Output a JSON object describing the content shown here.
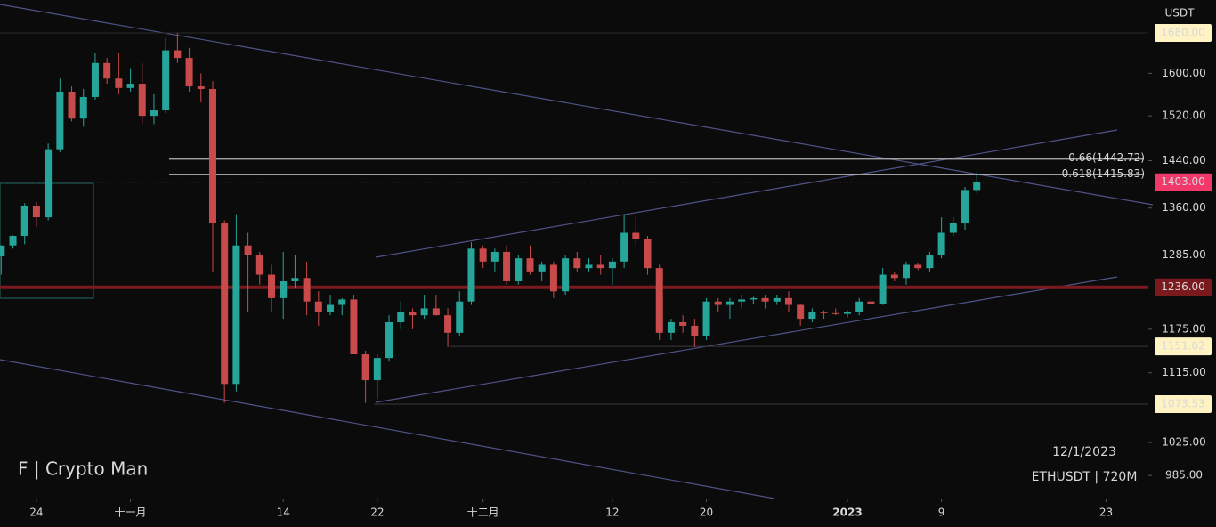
{
  "chart_data": {
    "type": "candlestick",
    "currency": "USDT",
    "watermark": "F | Crypto Man",
    "date_stamp": "12/1/2023",
    "symbol_stamp": "ETHUSDT | 720M",
    "log_scale": true,
    "grid": false,
    "up_color": "#26a69a",
    "down_color": "#c94a4a",
    "ylim": [
      958,
      1748
    ],
    "xlim": [
      -0.1,
      97.6
    ],
    "yticks": [
      {
        "value": 1600,
        "label": "1600.00"
      },
      {
        "value": 1520,
        "label": "1520.00"
      },
      {
        "value": 1440,
        "label": "1440.00"
      },
      {
        "value": 1360,
        "label": "1360.00"
      },
      {
        "value": 1285,
        "label": "1285.00"
      },
      {
        "value": 1175,
        "label": "1175.00"
      },
      {
        "value": 1115,
        "label": "1115.00"
      },
      {
        "value": 1025,
        "label": "1025.00"
      },
      {
        "value": 985,
        "label": "985.00"
      }
    ],
    "xticks": [
      {
        "value": 3,
        "label": "24"
      },
      {
        "value": 11,
        "label": "十一月"
      },
      {
        "value": 24,
        "label": "14"
      },
      {
        "value": 32,
        "label": "22"
      },
      {
        "value": 41,
        "label": "十二月"
      },
      {
        "value": 52,
        "label": "12"
      },
      {
        "value": 60,
        "label": "20"
      },
      {
        "value": 72,
        "label": "2023"
      },
      {
        "value": 80,
        "label": "9"
      },
      {
        "value": 94,
        "label": "23"
      }
    ],
    "price_labels": [
      {
        "value": 1680,
        "label": "1680.00",
        "color": "#fff3c4",
        "text_color": "#000000"
      },
      {
        "value": 1403,
        "label": "1403.00",
        "color": "#f0396a",
        "text_color": "#ffffff"
      },
      {
        "value": 1236,
        "label": "1236.00",
        "color": "#7a1a1e",
        "text_color": "#ffffff"
      },
      {
        "value": 1151.02,
        "label": "1151.02",
        "color": "#fff3c4",
        "text_color": "#000000"
      },
      {
        "value": 1073.53,
        "label": "1073.53",
        "color": "#fff3c4",
        "text_color": "#000000"
      }
    ],
    "levels": [
      {
        "value": 1442.72,
        "label": "0.66(1442.72)"
      },
      {
        "value": 1415.83,
        "label": "0.618(1415.83)"
      }
    ],
    "open": [
      1283,
      1300,
      1315,
      1364,
      1345,
      1460,
      1565,
      1515,
      1555,
      1620,
      1590,
      1572,
      1580,
      1520,
      1530,
      1645,
      1630,
      1575,
      1570,
      1335,
      1100,
      1300,
      1285,
      1255,
      1220,
      1245,
      1250,
      1215,
      1200,
      1210,
      1218,
      1140,
      1105,
      1135,
      1185,
      1200,
      1195,
      1205,
      1195,
      1170,
      1215,
      1295,
      1275,
      1290,
      1245,
      1280,
      1260,
      1270,
      1230,
      1280,
      1265,
      1270,
      1265,
      1275,
      1320,
      1310,
      1265,
      1170,
      1185,
      1180,
      1165,
      1215,
      1210,
      1215,
      1218,
      1220,
      1215,
      1220,
      1210,
      1190,
      1200,
      1198,
      1197,
      1200,
      1215,
      1212,
      1255,
      1250,
      1270,
      1265,
      1285,
      1320,
      1335,
      1390
    ],
    "high": [
      1300,
      1316,
      1368,
      1370,
      1470,
      1590,
      1575,
      1570,
      1640,
      1630,
      1640,
      1610,
      1620,
      1560,
      1670,
      1680,
      1650,
      1600,
      1585,
      1340,
      1350,
      1320,
      1290,
      1270,
      1290,
      1285,
      1275,
      1230,
      1225,
      1220,
      1225,
      1145,
      1140,
      1195,
      1215,
      1205,
      1225,
      1225,
      1205,
      1230,
      1305,
      1300,
      1295,
      1300,
      1285,
      1300,
      1275,
      1275,
      1285,
      1290,
      1280,
      1285,
      1280,
      1350,
      1345,
      1315,
      1270,
      1190,
      1195,
      1190,
      1220,
      1220,
      1220,
      1225,
      1222,
      1225,
      1225,
      1230,
      1212,
      1205,
      1202,
      1205,
      1202,
      1220,
      1220,
      1265,
      1260,
      1275,
      1272,
      1290,
      1345,
      1345,
      1395,
      1420
    ],
    "low": [
      1255,
      1295,
      1302,
      1330,
      1340,
      1455,
      1510,
      1500,
      1550,
      1580,
      1560,
      1565,
      1505,
      1505,
      1525,
      1620,
      1565,
      1545,
      1260,
      1075,
      1090,
      1200,
      1240,
      1200,
      1190,
      1235,
      1195,
      1180,
      1195,
      1195,
      1145,
      1075,
      1080,
      1130,
      1175,
      1175,
      1190,
      1195,
      1150,
      1165,
      1210,
      1265,
      1260,
      1240,
      1240,
      1255,
      1245,
      1220,
      1225,
      1260,
      1260,
      1255,
      1240,
      1265,
      1300,
      1255,
      1160,
      1160,
      1170,
      1150,
      1160,
      1200,
      1190,
      1205,
      1212,
      1205,
      1210,
      1200,
      1180,
      1185,
      1190,
      1195,
      1192,
      1195,
      1208,
      1210,
      1245,
      1240,
      1262,
      1260,
      1280,
      1315,
      1325,
      1385
    ],
    "close": [
      1300,
      1315,
      1364,
      1345,
      1460,
      1565,
      1515,
      1555,
      1620,
      1590,
      1572,
      1580,
      1520,
      1530,
      1645,
      1630,
      1575,
      1570,
      1335,
      1100,
      1300,
      1285,
      1255,
      1220,
      1245,
      1250,
      1215,
      1200,
      1210,
      1218,
      1140,
      1105,
      1135,
      1185,
      1200,
      1195,
      1205,
      1195,
      1170,
      1215,
      1295,
      1275,
      1290,
      1245,
      1280,
      1260,
      1270,
      1230,
      1280,
      1265,
      1270,
      1265,
      1275,
      1320,
      1310,
      1265,
      1170,
      1185,
      1180,
      1165,
      1215,
      1210,
      1215,
      1218,
      1220,
      1215,
      1220,
      1210,
      1190,
      1200,
      1198,
      1197,
      1200,
      1215,
      1212,
      1255,
      1250,
      1270,
      1265,
      1285,
      1320,
      1335,
      1390,
      1403
    ]
  }
}
